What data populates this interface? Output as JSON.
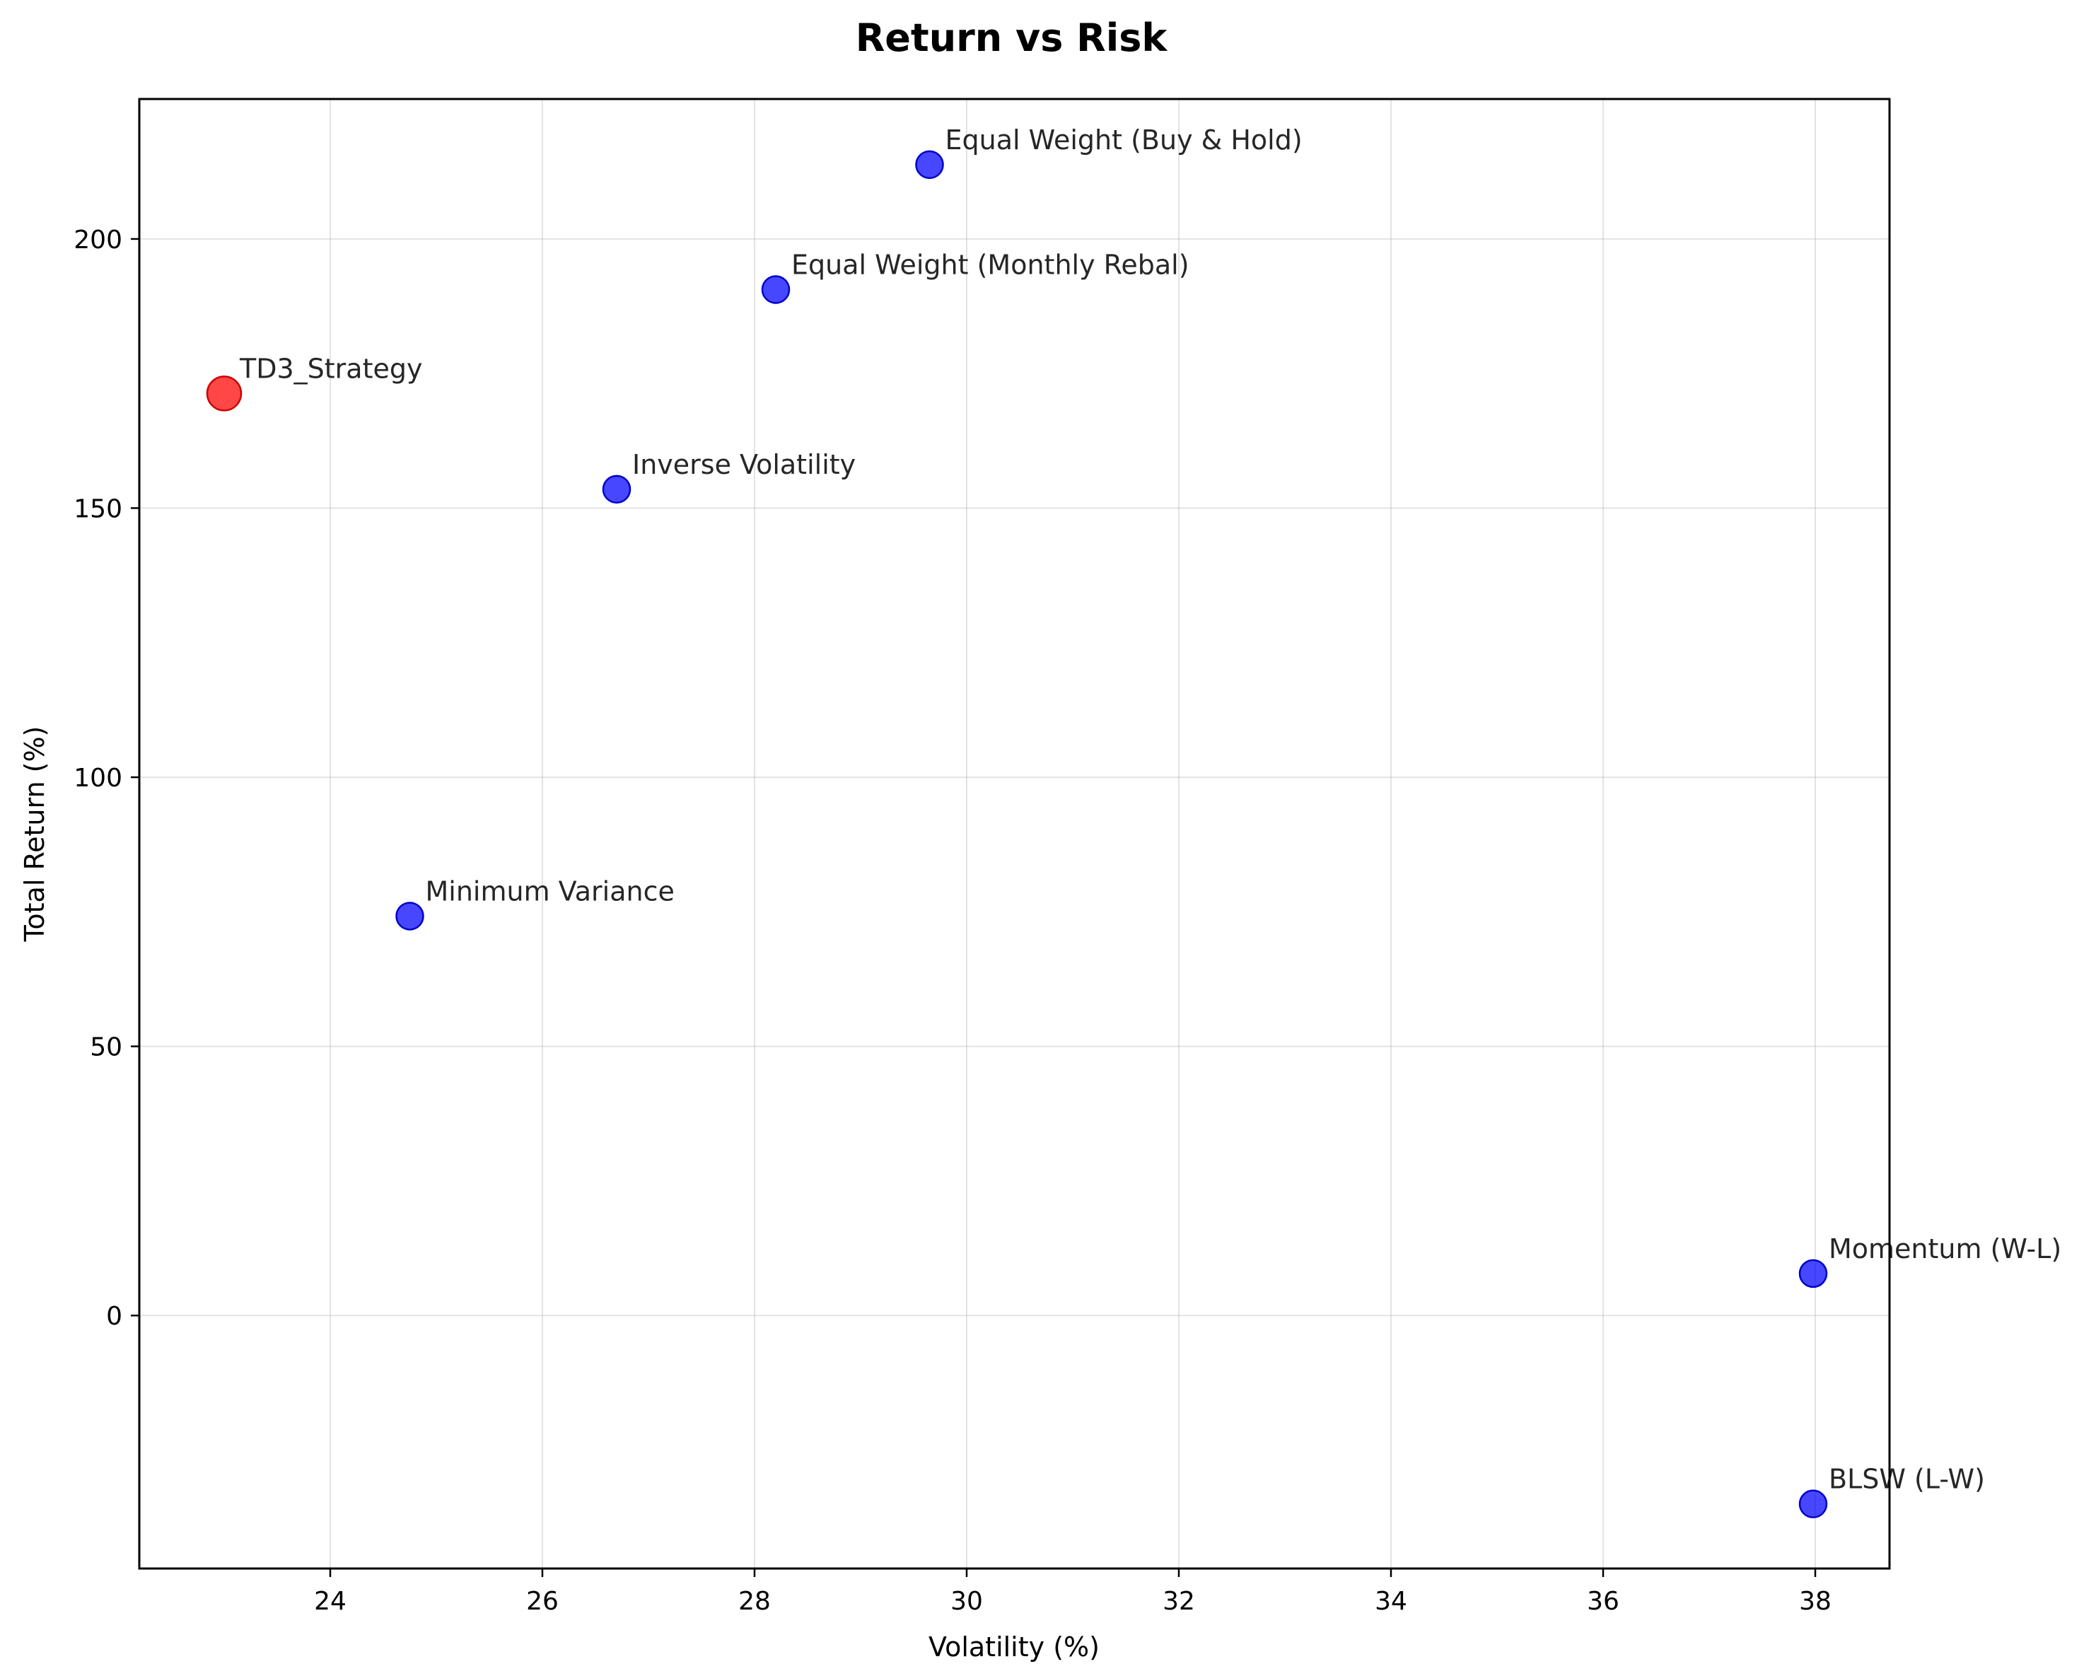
{
  "chart_data": {
    "type": "scatter",
    "title": "Return vs Risk",
    "xlabel": "Volatility (%)",
    "ylabel": "Total Return (%)",
    "xlim": [
      22.2,
      38.7
    ],
    "ylim": [
      -47,
      226
    ],
    "xticks": [
      24,
      26,
      28,
      30,
      32,
      34,
      36,
      38
    ],
    "yticks": [
      0,
      50,
      100,
      150,
      200
    ],
    "grid": true,
    "legend": "none",
    "colors": {
      "highlight": "#ff0000",
      "baseline": "#0000ff",
      "edge_highlight": "#cc0000",
      "edge_baseline": "#0000cc"
    },
    "points": [
      {
        "label": "TD3_Strategy",
        "x": 23.0,
        "y": 171.3,
        "group": "highlight"
      },
      {
        "label": "Equal Weight (Buy & Hold)",
        "x": 29.65,
        "y": 213.8,
        "group": "baseline"
      },
      {
        "label": "Equal Weight (Monthly Rebal)",
        "x": 28.2,
        "y": 190.6,
        "group": "baseline"
      },
      {
        "label": "Inverse Volatility",
        "x": 26.7,
        "y": 153.5,
        "group": "baseline"
      },
      {
        "label": "Minimum Variance",
        "x": 24.75,
        "y": 74.2,
        "group": "baseline"
      },
      {
        "label": "Momentum (W-L)",
        "x": 37.98,
        "y": 7.8,
        "group": "baseline"
      },
      {
        "label": "BLSW (L-W)",
        "x": 37.98,
        "y": -35.0,
        "group": "baseline"
      }
    ]
  }
}
